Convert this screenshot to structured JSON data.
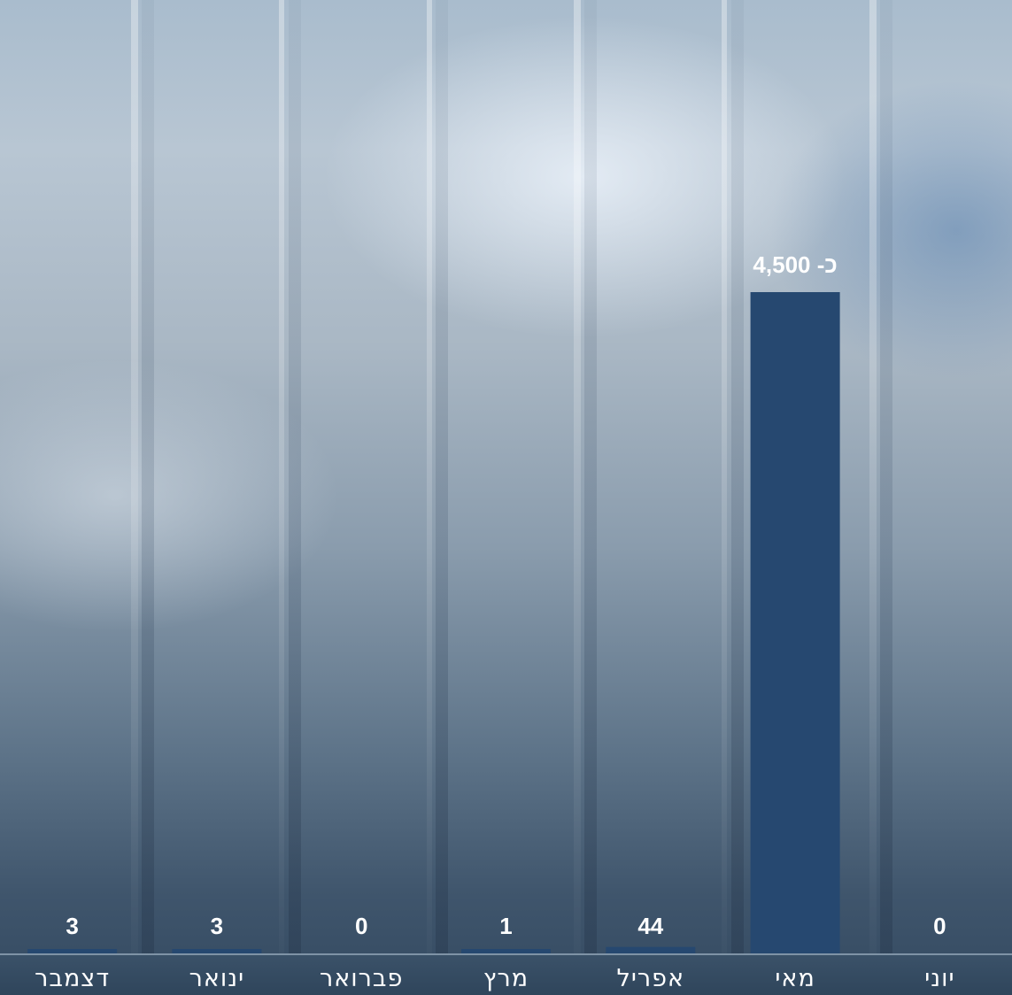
{
  "chart_data": {
    "type": "bar",
    "categories": [
      "דצמבר",
      "ינואר",
      "פברואר",
      "מרץ",
      "אפריל",
      "מאי",
      "יוני"
    ],
    "values": [
      3,
      3,
      0,
      1,
      44,
      4500,
      0
    ],
    "data_labels": [
      "3",
      "3",
      "0",
      "1",
      "44",
      "כ-  4,500",
      "0"
    ],
    "title": "",
    "xlabel": "",
    "ylabel": "",
    "ylim": [
      0,
      6000
    ],
    "grid": false,
    "legend": "none",
    "bar_color": "#264870"
  }
}
